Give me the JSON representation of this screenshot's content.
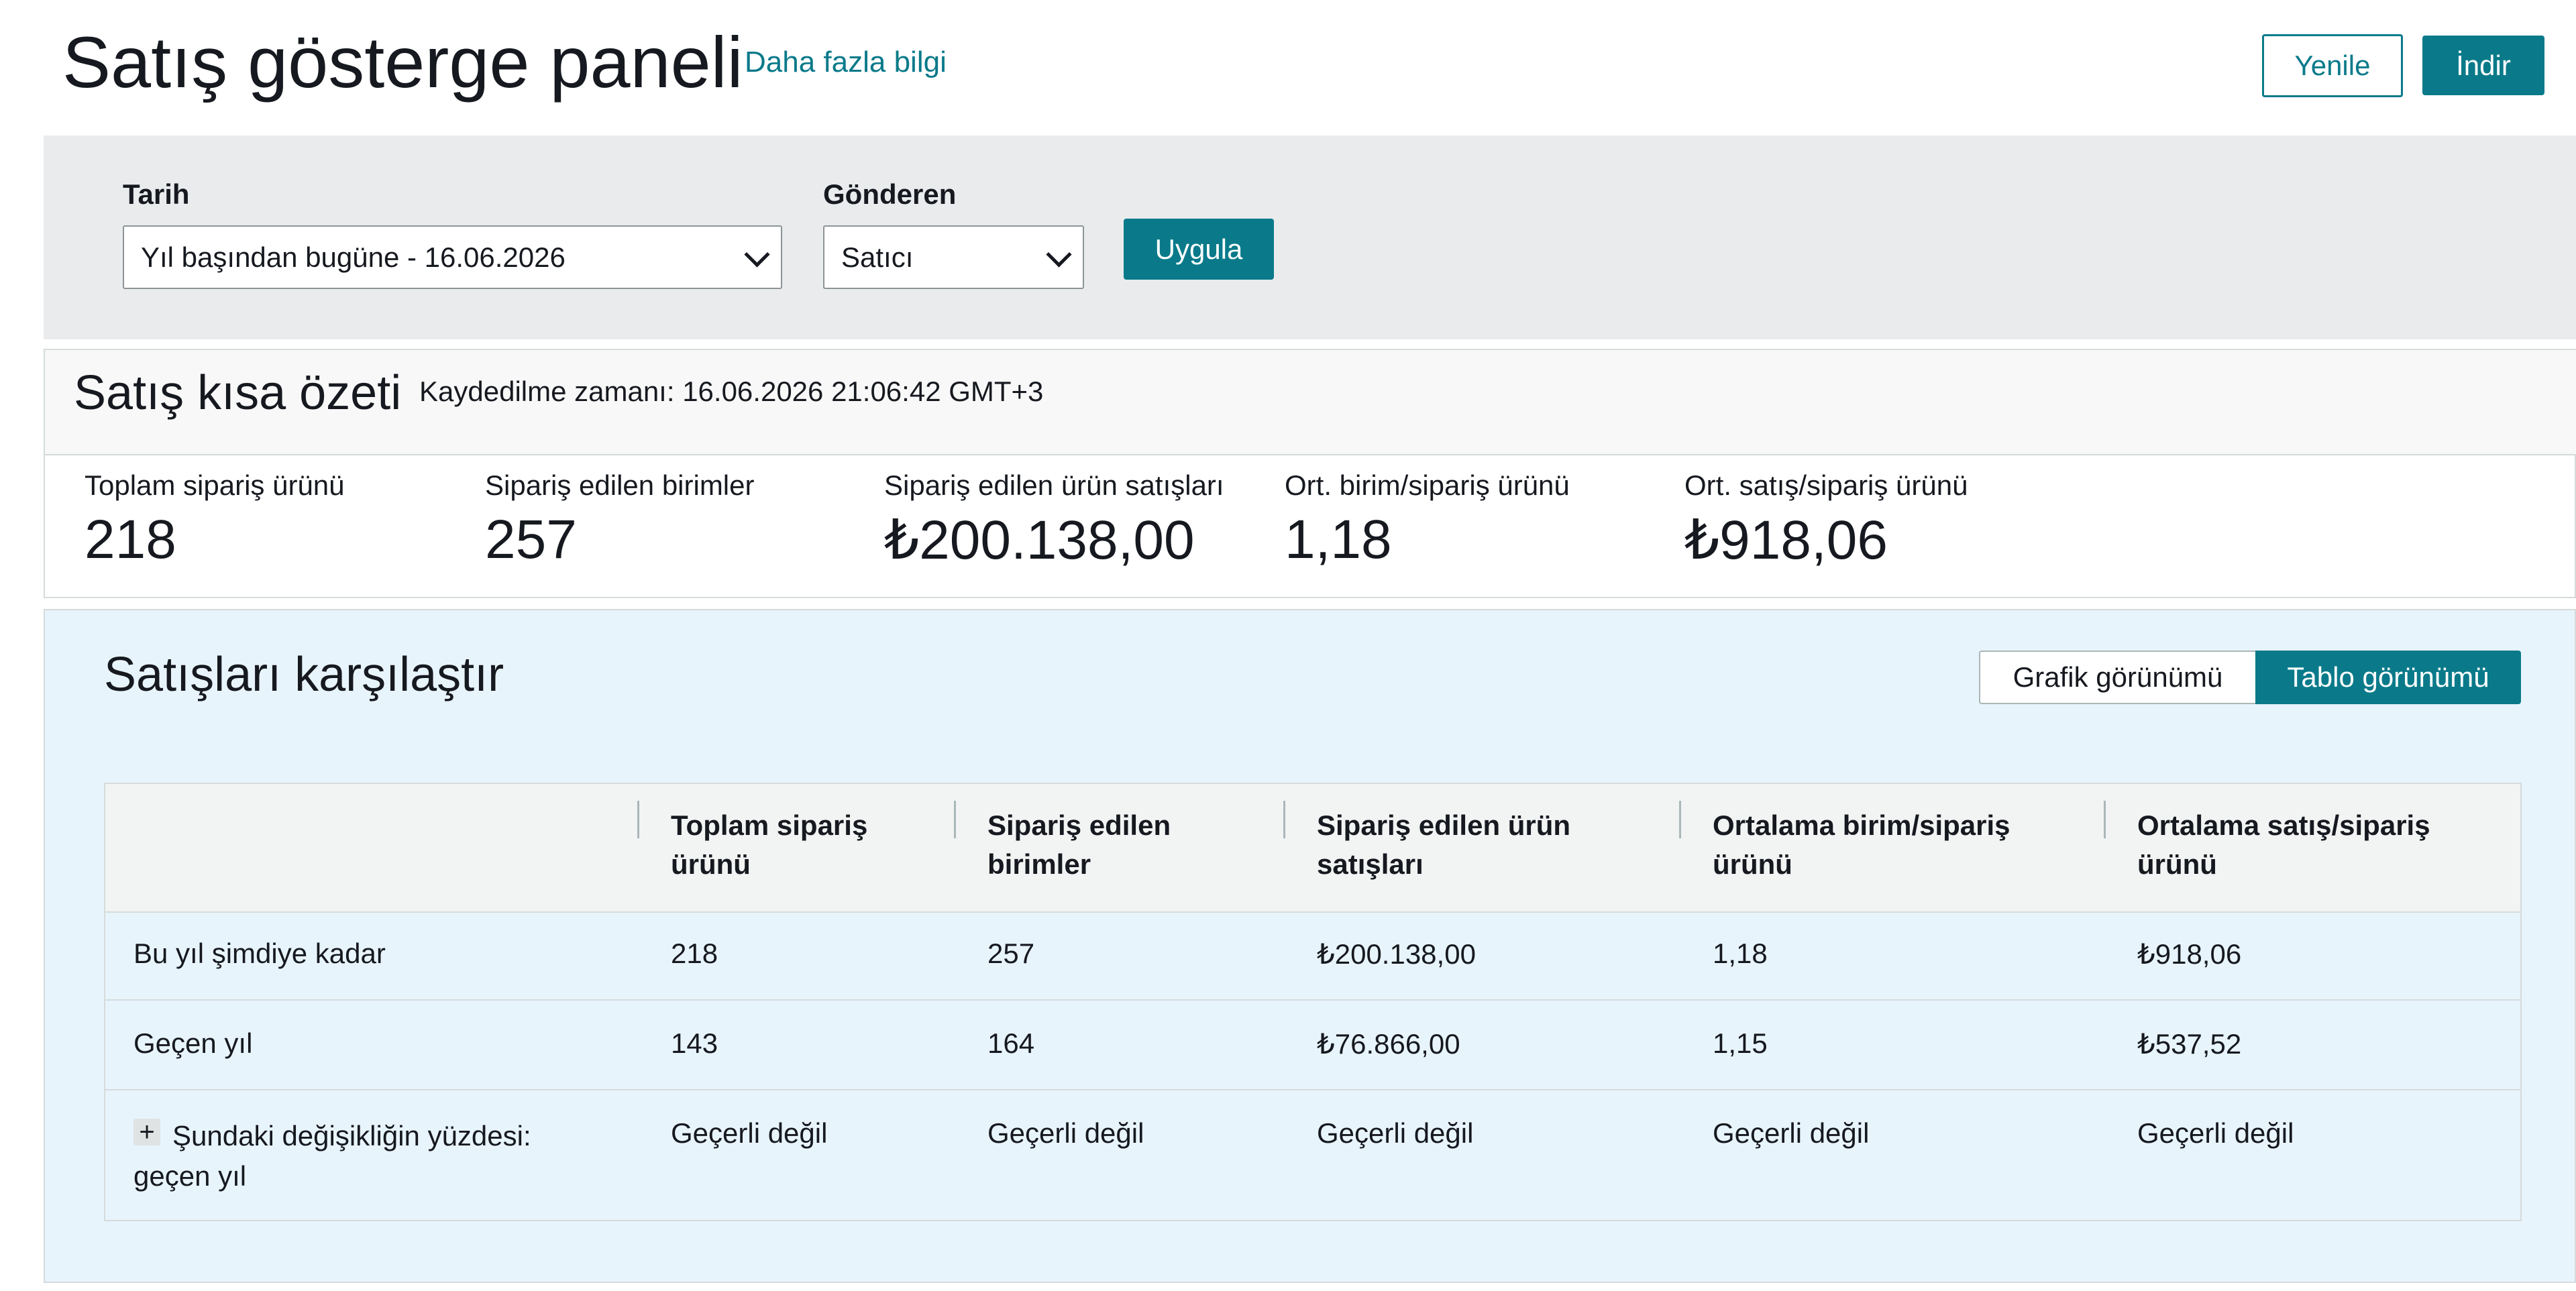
{
  "header": {
    "title": "Satış gösterge paneli",
    "learn_more": "Daha fazla bilgi",
    "refresh_label": "Yenile",
    "download_label": "İndir"
  },
  "filters": {
    "date_label": "Tarih",
    "date_value": "Yıl başından bugüne - 16.06.2026",
    "sender_label": "Gönderen",
    "sender_value": "Satıcı",
    "apply_label": "Uygula"
  },
  "summary": {
    "title": "Satış kısa özeti",
    "saved_time": "Kaydedilme zamanı: 16.06.2026 21:06:42 GMT+3",
    "metrics": [
      {
        "label": "Toplam sipariş ürünü",
        "value": "218"
      },
      {
        "label": "Sipariş edilen birimler",
        "value": "257"
      },
      {
        "label": "Sipariş edilen ürün satışları",
        "value": "₺200.138,00"
      },
      {
        "label": "Ort. birim/sipariş ürünü",
        "value": "1,18"
      },
      {
        "label": "Ort. satış/sipariş ürünü",
        "value": "₺918,06"
      }
    ]
  },
  "compare": {
    "title": "Satışları karşılaştır",
    "graph_view": "Grafik görünümü",
    "table_view": "Tablo görünümü",
    "table": {
      "columns": [
        "",
        "Toplam sipariş ürünü",
        "Sipariş edilen birimler",
        "Sipariş edilen ürün satışları",
        "Ortalama birim/sipariş ürünü",
        "Ortalama satış/sipariş ürünü"
      ],
      "rows": [
        {
          "label": "Bu yıl şimdiye kadar",
          "cells": [
            "218",
            "257",
            "₺200.138,00",
            "1,18",
            "₺918,06"
          ]
        },
        {
          "label": "Geçen yıl",
          "cells": [
            "143",
            "164",
            "₺76.866,00",
            "1,15",
            "₺537,52"
          ]
        },
        {
          "label": "Şundaki değişikliğin yüzdesi: geçen yıl",
          "expand": "+",
          "cells": [
            "Geçerli değil",
            "Geçerli değil",
            "Geçerli değil",
            "Geçerli değil",
            "Geçerli değil"
          ]
        }
      ]
    }
  },
  "colors": {
    "accent": "#0a7a8a",
    "filter_band": "#e9ebed",
    "compare_bg": "#e8f4fc"
  }
}
